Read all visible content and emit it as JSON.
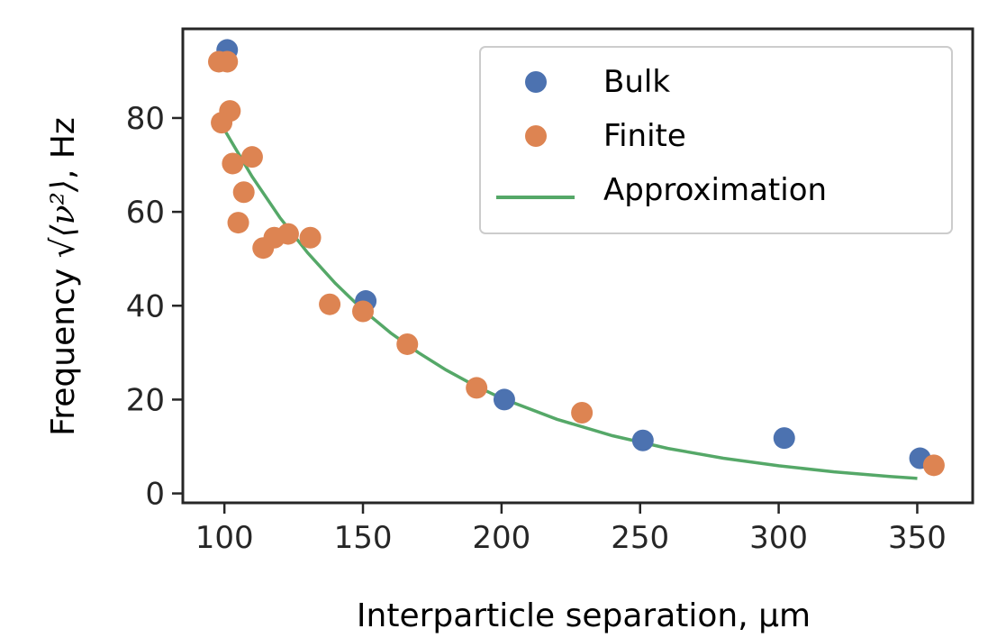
{
  "chart_data": {
    "type": "scatter",
    "xlabel": "Interparticle separation, μm",
    "ylabel_main": "Frequency ",
    "ylabel_math": "√⟨ν²⟩",
    "ylabel_unit": ", Hz",
    "xlim": [
      85,
      370
    ],
    "ylim": [
      -2,
      99
    ],
    "xticks": [
      100,
      150,
      200,
      250,
      300,
      350
    ],
    "yticks": [
      0,
      20,
      40,
      60,
      80
    ],
    "grid": false,
    "legend_position": "top-right",
    "series": [
      {
        "name": "Bulk",
        "kind": "scatter",
        "color": "#4C72B0",
        "points": [
          [
            101,
            94.5
          ],
          [
            151,
            41
          ],
          [
            201,
            20
          ],
          [
            251,
            11.3
          ],
          [
            302,
            11.8
          ],
          [
            351,
            7.5
          ]
        ]
      },
      {
        "name": "Finite",
        "kind": "scatter",
        "color": "#DD8452",
        "points": [
          [
            98,
            92
          ],
          [
            101,
            92
          ],
          [
            102,
            81.5
          ],
          [
            99,
            79
          ],
          [
            103,
            70.3
          ],
          [
            110,
            71.7
          ],
          [
            107,
            64.2
          ],
          [
            105,
            57.7
          ],
          [
            114,
            52.3
          ],
          [
            118,
            54.5
          ],
          [
            123,
            55.3
          ],
          [
            131,
            54.5
          ],
          [
            138,
            40.3
          ],
          [
            150,
            38.8
          ],
          [
            166,
            31.8
          ],
          [
            191,
            22.5
          ],
          [
            229,
            17.2
          ],
          [
            356,
            6
          ]
        ]
      },
      {
        "name": "Approximation",
        "kind": "line",
        "color": "#55A868",
        "points": [
          [
            100,
            77.5
          ],
          [
            110,
            67.5
          ],
          [
            120,
            58.8
          ],
          [
            130,
            51.3
          ],
          [
            140,
            44.8
          ],
          [
            150,
            39.1
          ],
          [
            160,
            34.2
          ],
          [
            170,
            30.0
          ],
          [
            180,
            26.3
          ],
          [
            190,
            23.1
          ],
          [
            200,
            20.3
          ],
          [
            220,
            15.8
          ],
          [
            240,
            12.3
          ],
          [
            260,
            9.6
          ],
          [
            280,
            7.5
          ],
          [
            300,
            5.9
          ],
          [
            320,
            4.6
          ],
          [
            340,
            3.6
          ],
          [
            350,
            3.2
          ]
        ]
      }
    ]
  }
}
